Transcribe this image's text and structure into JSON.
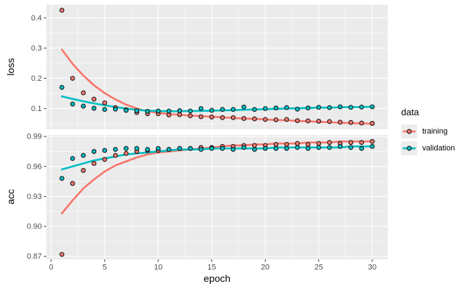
{
  "chart_data": {
    "type": "scatter",
    "description": "Training history: points per epoch with smoothed trend lines, faceted into loss (top) and acc (bottom) panels",
    "xlabel": "epoch",
    "x": [
      1,
      2,
      3,
      4,
      5,
      6,
      7,
      8,
      9,
      10,
      11,
      12,
      13,
      14,
      15,
      16,
      17,
      18,
      19,
      20,
      21,
      22,
      23,
      24,
      25,
      26,
      27,
      28,
      29,
      30
    ],
    "xticks": [
      0,
      5,
      10,
      15,
      20,
      25,
      30
    ],
    "xminor": [
      2.5,
      7.5,
      12.5,
      17.5,
      22.5,
      27.5
    ],
    "xlim": [
      -0.45,
      31.45
    ],
    "grid": "on",
    "legend_position": "right",
    "facets": [
      {
        "id": "loss",
        "ylabel": "loss",
        "yticks": [
          "0.1",
          "0.2",
          "0.3",
          "0.4"
        ],
        "ytick_values": [
          0.1,
          0.2,
          0.3,
          0.4
        ],
        "yminor": [
          0.05,
          0.15,
          0.25,
          0.35
        ],
        "ylim": [
          0.0313,
          0.4438
        ]
      },
      {
        "id": "acc",
        "ylabel": "acc",
        "yticks": [
          "0.87",
          "0.90",
          "0.93",
          "0.96",
          "0.99"
        ],
        "ytick_values": [
          0.87,
          0.9,
          0.93,
          0.96,
          0.99
        ],
        "yminor": [
          0.885,
          0.915,
          0.945,
          0.975
        ],
        "ylim": [
          0.867,
          0.9915
        ]
      }
    ],
    "series": [
      {
        "name": "training",
        "color": "#F8766D",
        "loss": [
          0.425,
          0.2,
          0.152,
          0.131,
          0.119,
          0.103,
          0.096,
          0.087,
          0.083,
          0.083,
          0.079,
          0.08,
          0.076,
          0.073,
          0.072,
          0.07,
          0.07,
          0.067,
          0.066,
          0.064,
          0.063,
          0.064,
          0.06,
          0.059,
          0.058,
          0.057,
          0.055,
          0.054,
          0.052,
          0.051
        ],
        "loss_smooth": [
          0.295,
          0.248,
          0.209,
          0.177,
          0.151,
          0.13,
          0.113,
          0.1,
          0.091,
          0.086,
          0.082,
          0.079,
          0.077,
          0.075,
          0.073,
          0.071,
          0.069,
          0.067,
          0.066,
          0.064,
          0.062,
          0.061,
          0.059,
          0.058,
          0.056,
          0.055,
          0.053,
          0.052,
          0.051,
          0.05
        ],
        "acc": [
          0.872,
          0.943,
          0.956,
          0.963,
          0.967,
          0.971,
          0.973,
          0.975,
          0.976,
          0.976,
          0.977,
          0.978,
          0.978,
          0.979,
          0.979,
          0.98,
          0.98,
          0.981,
          0.981,
          0.981,
          0.982,
          0.982,
          0.983,
          0.982,
          0.983,
          0.984,
          0.983,
          0.984,
          0.984,
          0.985
        ],
        "acc_smooth": [
          0.913,
          0.926,
          0.938,
          0.947,
          0.955,
          0.961,
          0.965,
          0.969,
          0.972,
          0.974,
          0.975,
          0.976,
          0.977,
          0.978,
          0.979,
          0.98,
          0.981,
          0.981,
          0.982,
          0.982,
          0.983,
          0.983,
          0.983,
          0.984,
          0.984,
          0.984,
          0.985,
          0.985,
          0.985,
          0.985
        ]
      },
      {
        "name": "validation",
        "color": "#00BFC4",
        "loss": [
          0.17,
          0.115,
          0.108,
          0.101,
          0.097,
          0.098,
          0.094,
          0.093,
          0.091,
          0.092,
          0.092,
          0.093,
          0.092,
          0.1,
          0.094,
          0.097,
          0.097,
          0.105,
          0.097,
          0.1,
          0.102,
          0.103,
          0.098,
          0.102,
          0.104,
          0.103,
          0.106,
          0.104,
          0.105,
          0.106
        ],
        "loss_smooth": [
          0.14,
          0.132,
          0.124,
          0.117,
          0.111,
          0.105,
          0.1,
          0.096,
          0.093,
          0.092,
          0.091,
          0.091,
          0.092,
          0.092,
          0.093,
          0.094,
          0.095,
          0.096,
          0.097,
          0.098,
          0.099,
          0.1,
          0.101,
          0.102,
          0.103,
          0.103,
          0.104,
          0.105,
          0.105,
          0.106
        ],
        "acc": [
          0.948,
          0.968,
          0.971,
          0.975,
          0.976,
          0.977,
          0.978,
          0.978,
          0.977,
          0.978,
          0.977,
          0.978,
          0.978,
          0.977,
          0.978,
          0.978,
          0.977,
          0.979,
          0.977,
          0.978,
          0.978,
          0.978,
          0.979,
          0.978,
          0.979,
          0.979,
          0.98,
          0.979,
          0.978,
          0.98
        ],
        "acc_smooth": [
          0.957,
          0.96,
          0.963,
          0.966,
          0.968,
          0.97,
          0.972,
          0.973,
          0.974,
          0.975,
          0.976,
          0.977,
          0.977,
          0.977,
          0.978,
          0.978,
          0.978,
          0.978,
          0.978,
          0.978,
          0.979,
          0.979,
          0.979,
          0.979,
          0.979,
          0.979,
          0.979,
          0.98,
          0.98,
          0.98
        ]
      }
    ],
    "legend": {
      "title": "data",
      "entries": [
        "training",
        "validation"
      ]
    }
  },
  "style": {
    "panel_bg": "#EBEBEB",
    "grid": "#FFFFFF",
    "tick_text": "#4D4D4D",
    "tick_mark": "#333333",
    "axis_title": "#000000",
    "point_stroke": "#1A1A1A",
    "legend_key_bg": "#EDEDED"
  }
}
